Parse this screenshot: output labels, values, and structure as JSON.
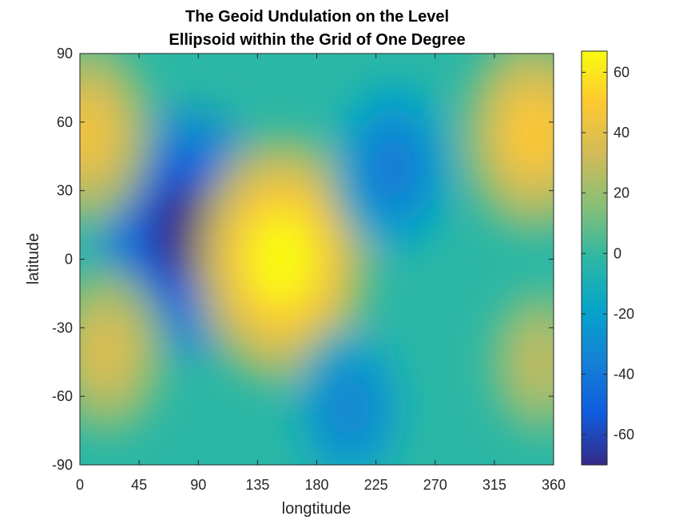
{
  "chart_data": {
    "type": "heatmap",
    "title": [
      "The Geoid Undulation on the Level",
      "Ellipsoid within the Grid of One Degree"
    ],
    "xlabel": "longtitude",
    "ylabel": "latitude",
    "xlim": [
      0,
      360
    ],
    "ylim": [
      -90,
      90
    ],
    "x_ticks": [
      0,
      45,
      90,
      135,
      180,
      225,
      270,
      315,
      360
    ],
    "y_ticks": [
      90,
      60,
      30,
      0,
      -30,
      -60,
      -90
    ],
    "colorbar": {
      "limits": [
        -70,
        67
      ],
      "ticks": [
        60,
        40,
        20,
        0,
        -20,
        -40,
        -60
      ],
      "colormap": "parula",
      "colors": [
        "#352a87",
        "#0f5cdd",
        "#1481d6",
        "#06a4ca",
        "#2eb7a4",
        "#87bf77",
        "#d1bb59",
        "#fec832",
        "#f9fb0e"
      ]
    },
    "features": [
      {
        "lon": 80,
        "lat": 12,
        "value": -70
      },
      {
        "lon": 153,
        "lat": 0,
        "value": 67
      },
      {
        "lon": 238,
        "lat": 40,
        "value": -40
      },
      {
        "lon": 205,
        "lat": -65,
        "value": -35
      },
      {
        "lon": 5,
        "lat": 55,
        "value": 45
      },
      {
        "lon": 345,
        "lat": 55,
        "value": 50
      },
      {
        "lon": 20,
        "lat": -40,
        "value": 38
      },
      {
        "lon": 350,
        "lat": -45,
        "value": 30
      }
    ]
  }
}
